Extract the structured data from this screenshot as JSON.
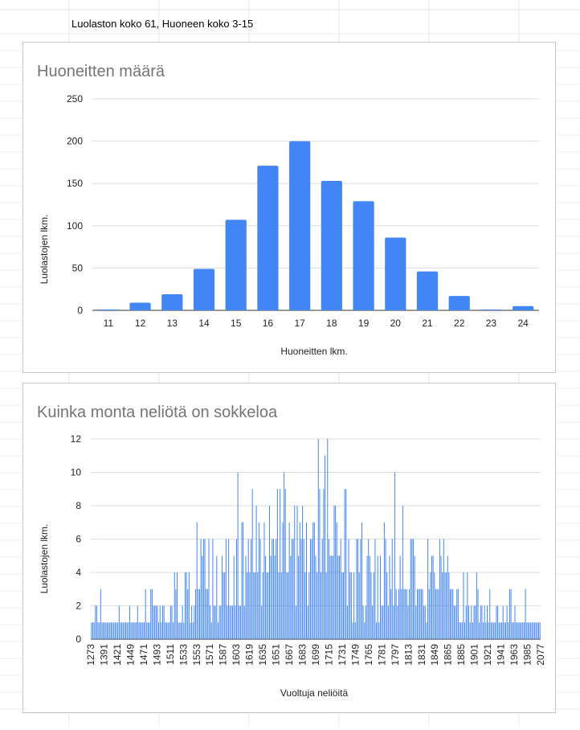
{
  "sheet": {
    "cell_text": "Luolaston koko 61, Huoneen koko 3-15"
  },
  "colors": {
    "bar": "#4285f4",
    "grid": "#dddddd",
    "axis": "#333333",
    "title": "#757575"
  },
  "chart_data": [
    {
      "type": "bar",
      "title": "Huoneitten määrä",
      "xlabel": "Huoneitten lkm.",
      "ylabel": "Luolastojen lkm.",
      "ylim": [
        0,
        250
      ],
      "yticks": [
        0,
        50,
        100,
        150,
        200,
        250
      ],
      "grid": true,
      "categories": [
        "11",
        "12",
        "13",
        "14",
        "15",
        "16",
        "17",
        "18",
        "19",
        "20",
        "21",
        "22",
        "23",
        "24"
      ],
      "values": [
        1,
        9,
        19,
        49,
        107,
        171,
        200,
        153,
        129,
        86,
        46,
        17,
        1,
        5
      ]
    },
    {
      "type": "bar",
      "title": "Kuinka monta neliötä on sokkeloa",
      "xlabel": "Vuoltuja neliöitä",
      "ylabel": "Luolastojen lkm.",
      "ylim": [
        0,
        12
      ],
      "yticks": [
        0,
        2,
        4,
        6,
        8,
        10,
        12
      ],
      "grid": true,
      "x_tick_labels": [
        "1273",
        "1391",
        "1421",
        "1449",
        "1471",
        "1493",
        "1511",
        "1533",
        "1553",
        "1571",
        "1587",
        "1603",
        "1619",
        "1635",
        "1651",
        "1667",
        "1683",
        "1699",
        "1715",
        "1731",
        "1749",
        "1765",
        "1781",
        "1797",
        "1813",
        "1831",
        "1849",
        "1865",
        "1885",
        "1901",
        "1921",
        "1941",
        "1963",
        "1985",
        "2077"
      ],
      "values": [
        1,
        1,
        1,
        2,
        2,
        1,
        1,
        3,
        1,
        1,
        1,
        1,
        1,
        1,
        1,
        1,
        1,
        1,
        1,
        1,
        1,
        2,
        1,
        1,
        1,
        1,
        1,
        1,
        1,
        2,
        1,
        1,
        1,
        1,
        1,
        2,
        1,
        1,
        1,
        1,
        1,
        3,
        1,
        1,
        1,
        3,
        3,
        2,
        2,
        2,
        2,
        1,
        2,
        1,
        2,
        2,
        1,
        1,
        1,
        1,
        2,
        2,
        1,
        4,
        3,
        4,
        1,
        1,
        1,
        2,
        1,
        4,
        4,
        3,
        4,
        1,
        2,
        1,
        2,
        3,
        7,
        3,
        3,
        6,
        5,
        6,
        6,
        3,
        3,
        6,
        2,
        1,
        6,
        2,
        2,
        5,
        1,
        2,
        2,
        5,
        4,
        4,
        6,
        2,
        6,
        2,
        2,
        2,
        5,
        2,
        6,
        10,
        2,
        2,
        7,
        7,
        2,
        5,
        4,
        6,
        4,
        6,
        9,
        4,
        4,
        8,
        4,
        7,
        6,
        2,
        4,
        7,
        5,
        4,
        4,
        8,
        5,
        6,
        6,
        5,
        6,
        9,
        4,
        9,
        4,
        7,
        10,
        9,
        4,
        4,
        7,
        5,
        6,
        6,
        8,
        2,
        8,
        5,
        7,
        6,
        8,
        6,
        4,
        7,
        2,
        4,
        6,
        6,
        7,
        7,
        5,
        4,
        12,
        9,
        4,
        6,
        9,
        11,
        4,
        12,
        6,
        5,
        5,
        5,
        8,
        8,
        7,
        5,
        5,
        6,
        4,
        4,
        9,
        9,
        2,
        6,
        4,
        4,
        1,
        4,
        1,
        6,
        6,
        4,
        6,
        7,
        2,
        1,
        2,
        5,
        6,
        5,
        4,
        2,
        4,
        6,
        1,
        5,
        1,
        5,
        2,
        2,
        7,
        6,
        4,
        2,
        5,
        3,
        6,
        2,
        10,
        3,
        2,
        3,
        5,
        3,
        8,
        3,
        3,
        3,
        2,
        3,
        6,
        6,
        6,
        5,
        2,
        3,
        3,
        3,
        3,
        3,
        2,
        2,
        1,
        6,
        3,
        4,
        5,
        5,
        4,
        3,
        3,
        3,
        6,
        5,
        4,
        6,
        4,
        4,
        5,
        4,
        3,
        3,
        3,
        2,
        2,
        3,
        3,
        1,
        1,
        1,
        4,
        1,
        2,
        4,
        2,
        1,
        2,
        1,
        2,
        2,
        4,
        3,
        1,
        2,
        2,
        1,
        2,
        1,
        2,
        1,
        3,
        1,
        1,
        1,
        1,
        2,
        2,
        1,
        1,
        1,
        2,
        1,
        1,
        2,
        1,
        3,
        3,
        1,
        1,
        2,
        1,
        1,
        1,
        1,
        1,
        1,
        1,
        3,
        1,
        1,
        1,
        1,
        1,
        1,
        1,
        1,
        1,
        1,
        1
      ]
    }
  ]
}
